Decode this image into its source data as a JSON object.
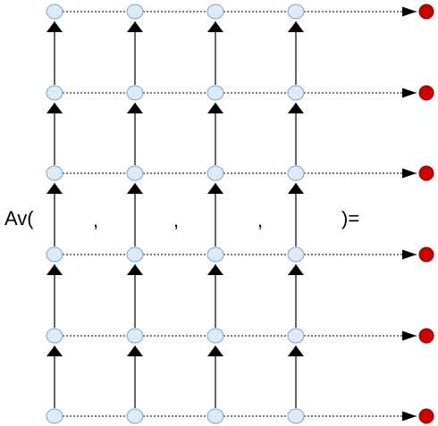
{
  "formula": {
    "prefix": "Av(",
    "separators": [
      ",",
      ",",
      ","
    ],
    "suffix": ")="
  },
  "grid": {
    "input_columns": 4,
    "rows": 6
  },
  "colors": {
    "input_node_fill": "#dcebf7",
    "input_node_stroke": "#7fa3c3",
    "output_node_fill": "#cc0000",
    "output_node_stroke": "#8a0000",
    "edge": "#000000"
  }
}
